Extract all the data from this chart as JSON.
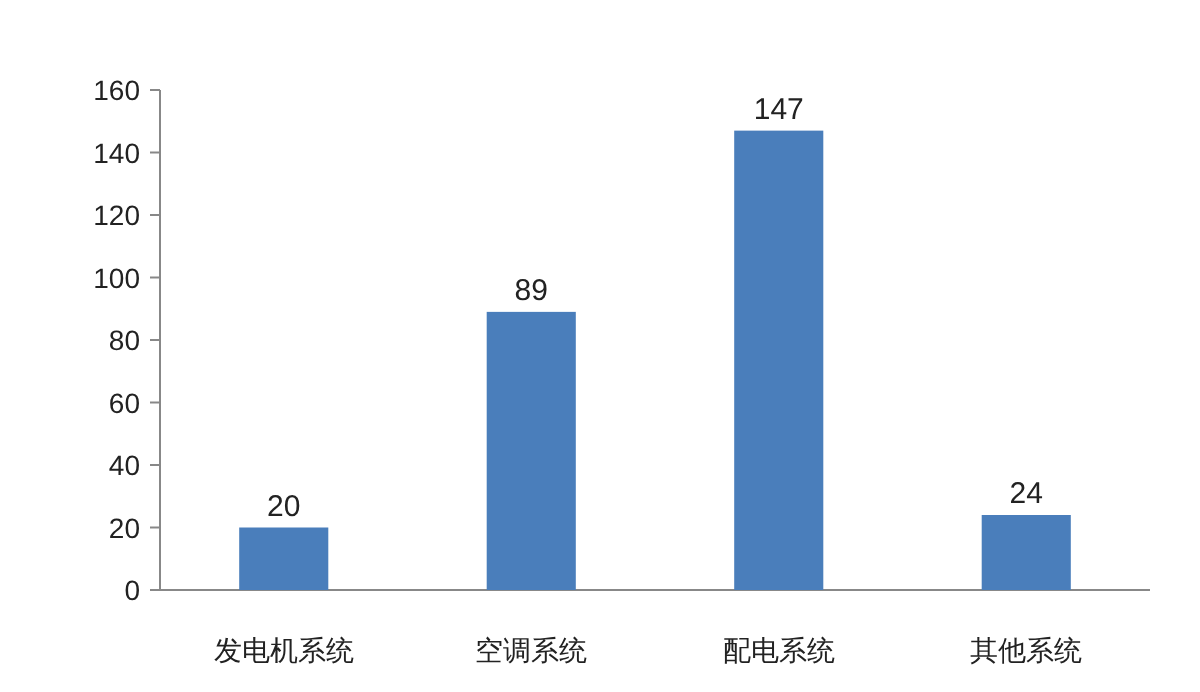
{
  "chart_data": {
    "type": "bar",
    "categories": [
      "发电机系统",
      "空调系统",
      "配电系统",
      "其他系统"
    ],
    "values": [
      20,
      89,
      147,
      24
    ],
    "color": "#4a7ebb",
    "ylim": [
      0,
      160
    ],
    "yticks": [
      0,
      20,
      40,
      60,
      80,
      100,
      120,
      140,
      160
    ],
    "data_labels": true,
    "grid": false
  }
}
